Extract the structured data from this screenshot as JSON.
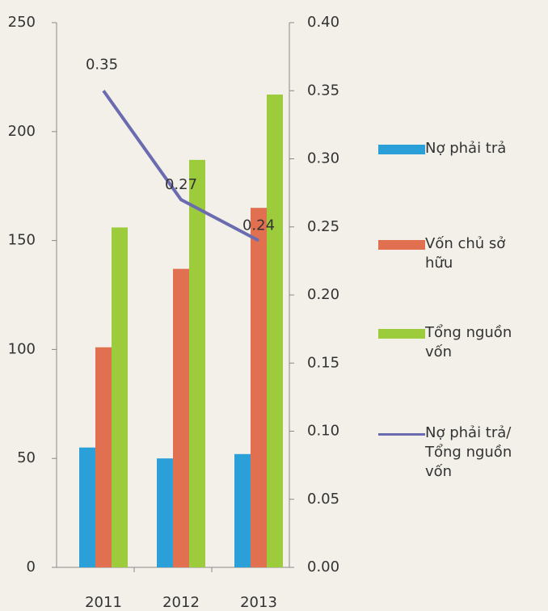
{
  "chart_data": {
    "type": "bar",
    "categories": [
      "2011",
      "2012",
      "2013"
    ],
    "series": [
      {
        "name": "Nợ phải trả",
        "color": "#2a9fd8",
        "values": [
          55,
          50,
          52
        ]
      },
      {
        "name": "Vốn chủ sở hữu",
        "color": "#e0704f",
        "values": [
          101,
          137,
          165
        ]
      },
      {
        "name": "Tổng nguồn vốn",
        "color": "#9ccc3c",
        "values": [
          156,
          187,
          217
        ]
      },
      {
        "name": "Nợ phải trả/ Tổng nguồn vốn",
        "type": "line",
        "axis": "y2",
        "color": "#6b6bb0",
        "values": [
          0.35,
          0.27,
          0.24
        ]
      }
    ],
    "ylim": [
      0,
      250
    ],
    "yticks": [
      0,
      50,
      100,
      150,
      200,
      250
    ],
    "y2lim": [
      0,
      0.4
    ],
    "y2ticks": [
      {
        "value": 0,
        "label": "0.00"
      },
      {
        "value": 0.05,
        "label": "0.05"
      },
      {
        "value": 0.1,
        "label": "0.10"
      },
      {
        "value": 0.15,
        "label": "0.15"
      },
      {
        "value": 0.2,
        "label": "0.20"
      },
      {
        "value": 0.25,
        "label": "0.25"
      },
      {
        "value": 0.3,
        "label": "0.30"
      },
      {
        "value": 0.35,
        "label": "0.35"
      },
      {
        "value": 0.4,
        "label": "0.40"
      }
    ],
    "legend": "right"
  }
}
